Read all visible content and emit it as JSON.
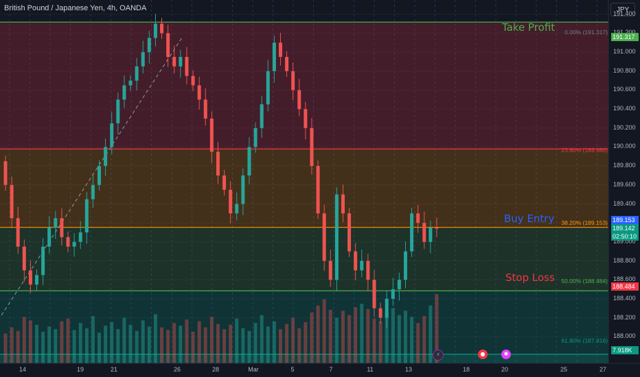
{
  "header": {
    "title": "British Pound / Japanese Yen, 4h, OANDA",
    "currency": "JPY"
  },
  "annotations": {
    "take_profit": "Take Profit",
    "buy_entry": "Buy Entry",
    "stop_loss": "Stop Loss"
  },
  "fib_levels": [
    {
      "label": "0.00% (191.317)",
      "price": 191.317,
      "color": "#4caf50"
    },
    {
      "label": "23.60% (189.980)",
      "price": 189.98,
      "color": "#f23645"
    },
    {
      "label": "38.20% (189.153)",
      "price": 189.153,
      "color": "#ff9800"
    },
    {
      "label": "50.00% (188.484)",
      "price": 188.484,
      "color": "#4caf50"
    },
    {
      "label": "61.80% (187.816)",
      "price": 187.816,
      "color": "#089981"
    }
  ],
  "price_tags": {
    "take_profit": "191.317",
    "entry": "189.153",
    "last": "189.142",
    "countdown": "02:50:10",
    "stop": "188.484",
    "volume": "7.918K"
  },
  "colors": {
    "up": "#26a69a",
    "down": "#ef5350",
    "background": "#131722"
  },
  "chart_data": {
    "type": "candlestick",
    "title": "British Pound / Japanese Yen, 4h, OANDA",
    "ylim": [
      187.72,
      191.55
    ],
    "y_ticks": [
      "191.400",
      "191.200",
      "191.000",
      "190.800",
      "190.600",
      "190.400",
      "190.200",
      "190.000",
      "189.800",
      "189.600",
      "189.400",
      "189.200",
      "189.000",
      "188.800",
      "188.600",
      "188.400",
      "188.200",
      "188.000"
    ],
    "x_ticks": [
      "14",
      "19",
      "21",
      "26",
      "28",
      "Mar",
      "5",
      "7",
      "11",
      "13",
      "18",
      "20",
      "25",
      "27"
    ],
    "legend": "none",
    "grid": true,
    "close": [
      189.6,
      189.25,
      188.95,
      188.7,
      188.55,
      188.65,
      188.95,
      189.15,
      189.25,
      189.05,
      188.95,
      189.0,
      189.1,
      189.45,
      189.6,
      189.8,
      190.0,
      190.25,
      190.5,
      190.65,
      190.7,
      190.85,
      191.0,
      191.15,
      191.3,
      191.2,
      190.95,
      190.85,
      190.95,
      190.75,
      190.65,
      190.5,
      190.3,
      189.95,
      189.7,
      189.55,
      189.3,
      189.4,
      189.7,
      190.0,
      190.2,
      190.45,
      190.8,
      191.1,
      190.95,
      190.8,
      190.6,
      190.4,
      190.2,
      189.8,
      189.3,
      188.8,
      188.6,
      189.5,
      189.3,
      188.9,
      188.7,
      188.8,
      188.6,
      188.3,
      188.2,
      188.4,
      188.5,
      188.6,
      188.9,
      189.3,
      189.2,
      189.0,
      189.15,
      189.14
    ],
    "volume": [
      3.4,
      4.1,
      3.7,
      5.3,
      4.9,
      4.4,
      3.6,
      4.2,
      3.9,
      4.8,
      5.1,
      3.8,
      4.6,
      4.0,
      5.4,
      3.5,
      4.3,
      4.7,
      3.9,
      5.2,
      4.4,
      3.7,
      4.9,
      4.2,
      5.6,
      4.1,
      3.8,
      4.6,
      4.3,
      5.0,
      3.6,
      4.8,
      4.1,
      5.3,
      4.5,
      3.9,
      4.4,
      5.1,
      4.0,
      3.7,
      4.6,
      5.5,
      4.2,
      4.8,
      3.9,
      4.5,
      5.2,
      4.0,
      4.7,
      5.8,
      6.6,
      7.3,
      6.1,
      5.2,
      6.0,
      5.5,
      6.4,
      6.8,
      6.2,
      5.1,
      4.8,
      5.7,
      6.3,
      5.5,
      6.0,
      5.3,
      4.6,
      5.4,
      6.6,
      7.9
    ]
  }
}
